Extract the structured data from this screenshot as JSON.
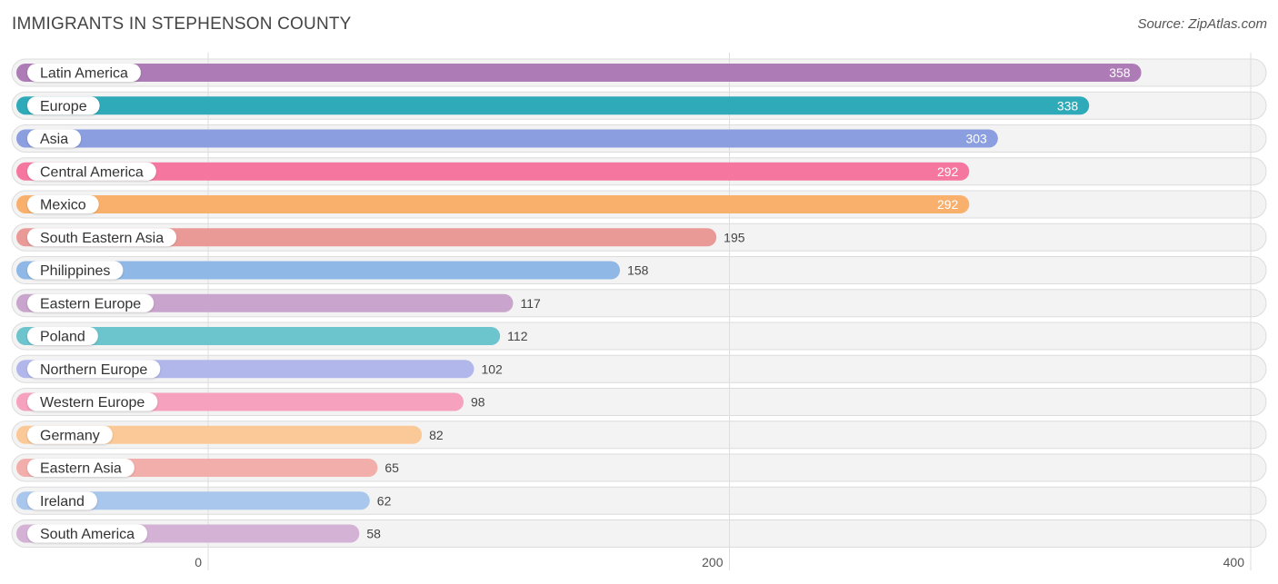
{
  "title": "IMMIGRANTS IN STEPHENSON COUNTY",
  "source": "Source: ZipAtlas.com",
  "chart_data": {
    "type": "bar",
    "orientation": "horizontal",
    "title": "IMMIGRANTS IN STEPHENSON COUNTY",
    "xlabel": "",
    "ylabel": "",
    "xlim": [
      0,
      400
    ],
    "xticks": [
      0,
      200,
      400
    ],
    "grid": true,
    "categories": [
      "Latin America",
      "Europe",
      "Asia",
      "Central America",
      "Mexico",
      "South Eastern Asia",
      "Philippines",
      "Eastern Europe",
      "Poland",
      "Northern Europe",
      "Western Europe",
      "Germany",
      "Eastern Asia",
      "Ireland",
      "South America"
    ],
    "values": [
      358,
      338,
      303,
      292,
      292,
      195,
      158,
      117,
      112,
      102,
      98,
      82,
      65,
      62,
      58
    ],
    "colors": [
      "#ad7bb5",
      "#2eaab8",
      "#8b9ee0",
      "#f577a0",
      "#f9b06c",
      "#e99a96",
      "#8fb8e6",
      "#c9a4cc",
      "#6cc4cc",
      "#b1b7ea",
      "#f6a1bd",
      "#fbc997",
      "#f2aeaa",
      "#a9c6ec",
      "#d3b2d6"
    ]
  }
}
